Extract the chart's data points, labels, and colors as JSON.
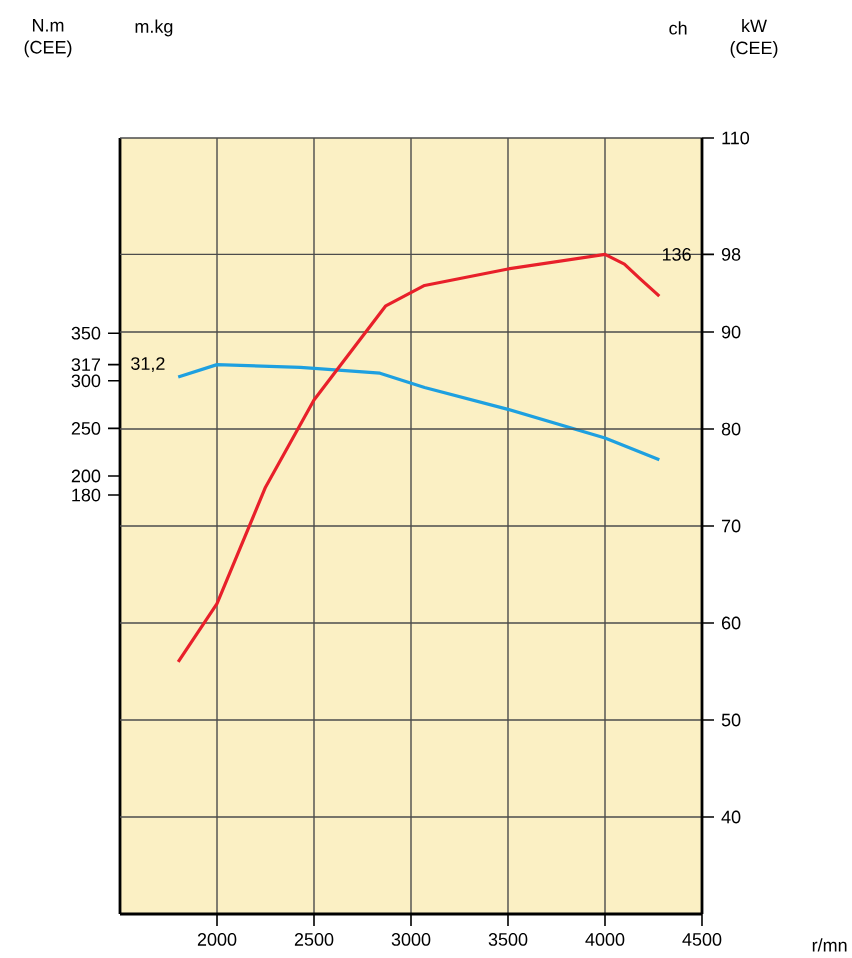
{
  "chart_data": {
    "type": "line",
    "xlabel": "r/mn",
    "ylabel": "N.m (CEE)",
    "y2label": "kW (CEE)",
    "annotations": [
      "m.kg",
      "31,2",
      "ch",
      "136"
    ],
    "xlim": [
      1500,
      4500
    ],
    "xticks": [
      2000,
      2500,
      3000,
      3500,
      4000,
      4500
    ],
    "ylim": [
      -260,
      555
    ],
    "yticks": [
      180,
      200,
      250,
      300,
      317,
      350
    ],
    "y2lim": [
      30,
      110
    ],
    "y2ticks": [
      40,
      50,
      60,
      70,
      80,
      90,
      98,
      110
    ],
    "grid": true,
    "series": [
      {
        "color": "#1ea0e0",
        "axis": "y",
        "x": [
          1800,
          2000,
          2430,
          2840,
          3070,
          3500,
          4000,
          4280
        ],
        "values": [
          304,
          317,
          314,
          308,
          293,
          270,
          240,
          217
        ]
      },
      {
        "color": "#e8202a",
        "axis": "y2",
        "x": [
          1800,
          2000,
          2250,
          2500,
          2870,
          3070,
          3500,
          4000,
          4100,
          4180,
          4280
        ],
        "values": [
          56,
          62,
          74,
          83,
          92.7,
          94.8,
          96.5,
          98,
          97,
          95.5,
          93.7
        ]
      }
    ]
  }
}
